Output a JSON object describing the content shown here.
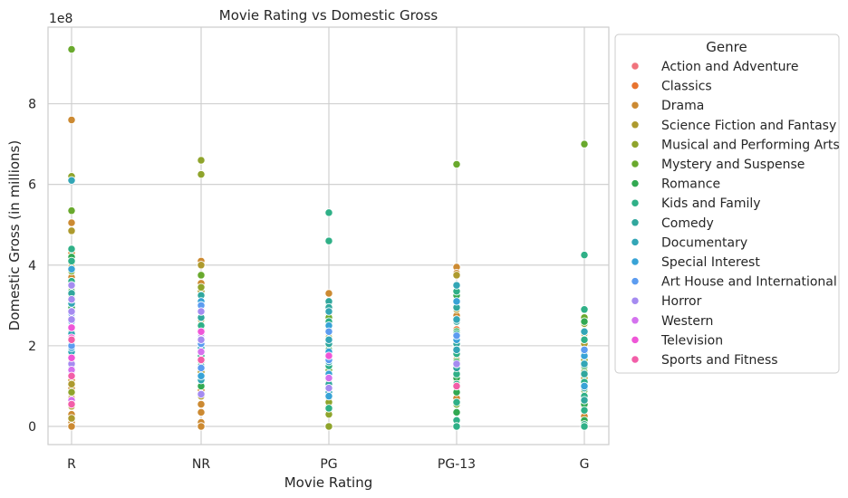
{
  "chart_data": {
    "type": "scatter",
    "title": "Movie Rating vs Domestic Gross",
    "xlabel": "Movie Rating",
    "ylabel": "Domestic Gross (in millions)",
    "y_offset_text": "1e8",
    "y_ticks": [
      0,
      2,
      4,
      6,
      8
    ],
    "ylim": [
      -0.45,
      9.9
    ],
    "categories": [
      "R",
      "NR",
      "PG",
      "PG-13",
      "G"
    ],
    "grid": true,
    "legend": {
      "title": "Genre",
      "placement": "outside-right"
    },
    "series": [
      {
        "name": "Action and Adventure",
        "color": "#f0737d",
        "points": [
          [
            "R",
            0.6
          ],
          [
            "R",
            0.75
          ],
          [
            "R",
            0.8
          ],
          [
            "NR",
            1.3
          ],
          [
            "PG",
            0.65
          ],
          [
            "PG-13",
            1.5
          ],
          [
            "G",
            0.3
          ]
        ]
      },
      {
        "name": "Classics",
        "color": "#e8742f",
        "points": [
          [
            "R",
            1.0
          ],
          [
            "R",
            1.8
          ],
          [
            "NR",
            0.9
          ],
          [
            "PG",
            1.1
          ],
          [
            "PG-13",
            2.4
          ],
          [
            "G",
            0.5
          ]
        ]
      },
      {
        "name": "Drama",
        "color": "#cc8a32",
        "points": [
          [
            "R",
            7.6
          ],
          [
            "R",
            5.05
          ],
          [
            "R",
            4.3
          ],
          [
            "R",
            4.05
          ],
          [
            "R",
            3.7
          ],
          [
            "R",
            3.4
          ],
          [
            "R",
            2.9
          ],
          [
            "R",
            2.6
          ],
          [
            "R",
            2.1
          ],
          [
            "R",
            1.75
          ],
          [
            "R",
            1.5
          ],
          [
            "R",
            1.3
          ],
          [
            "R",
            1.15
          ],
          [
            "R",
            0.95
          ],
          [
            "R",
            0.7
          ],
          [
            "R",
            0.5
          ],
          [
            "R",
            0.3
          ],
          [
            "R",
            0.1
          ],
          [
            "R",
            0.0
          ],
          [
            "NR",
            4.1
          ],
          [
            "NR",
            3.55
          ],
          [
            "NR",
            3.25
          ],
          [
            "NR",
            3.0
          ],
          [
            "NR",
            2.7
          ],
          [
            "NR",
            2.35
          ],
          [
            "NR",
            2.05
          ],
          [
            "NR",
            1.7
          ],
          [
            "NR",
            1.4
          ],
          [
            "NR",
            1.2
          ],
          [
            "NR",
            0.9
          ],
          [
            "NR",
            0.55
          ],
          [
            "NR",
            0.35
          ],
          [
            "NR",
            0.1
          ],
          [
            "NR",
            0.0
          ],
          [
            "PG",
            3.3
          ],
          [
            "PG",
            2.8
          ],
          [
            "PG",
            2.25
          ],
          [
            "PG",
            1.05
          ],
          [
            "PG",
            0.5
          ],
          [
            "PG-13",
            3.95
          ],
          [
            "PG-13",
            3.8
          ],
          [
            "PG-13",
            3.15
          ],
          [
            "PG-13",
            2.75
          ],
          [
            "PG-13",
            2.0
          ],
          [
            "PG-13",
            0.7
          ],
          [
            "G",
            0.25
          ]
        ]
      },
      {
        "name": "Science Fiction and Fantasy",
        "color": "#ad9a2e",
        "points": [
          [
            "R",
            4.85
          ],
          [
            "R",
            3.95
          ],
          [
            "R",
            3.6
          ],
          [
            "R",
            3.2
          ],
          [
            "R",
            2.7
          ],
          [
            "R",
            2.2
          ],
          [
            "R",
            1.6
          ],
          [
            "R",
            1.05
          ],
          [
            "R",
            0.5
          ],
          [
            "R",
            0.2
          ],
          [
            "NR",
            4.0
          ],
          [
            "NR",
            3.35
          ],
          [
            "NR",
            2.95
          ],
          [
            "NR",
            2.65
          ],
          [
            "NR",
            1.95
          ],
          [
            "NR",
            1.35
          ],
          [
            "NR",
            0.75
          ],
          [
            "PG",
            2.1
          ],
          [
            "PG",
            1.8
          ],
          [
            "PG",
            1.55
          ],
          [
            "PG",
            1.25
          ],
          [
            "PG",
            0.95
          ],
          [
            "PG",
            0.7
          ],
          [
            "PG",
            0.35
          ],
          [
            "PG-13",
            3.75
          ],
          [
            "PG-13",
            3.3
          ],
          [
            "PG-13",
            2.9
          ],
          [
            "PG-13",
            1.65
          ],
          [
            "PG-13",
            1.1
          ],
          [
            "G",
            2.3
          ],
          [
            "G",
            2.05
          ],
          [
            "G",
            1.45
          ],
          [
            "G",
            1.2
          ]
        ]
      },
      {
        "name": "Musical and Performing Arts",
        "color": "#8fa42c",
        "points": [
          [
            "R",
            6.2
          ],
          [
            "R",
            2.55
          ],
          [
            "R",
            1.9
          ],
          [
            "R",
            0.85
          ],
          [
            "NR",
            6.6
          ],
          [
            "NR",
            6.25
          ],
          [
            "NR",
            3.45
          ],
          [
            "NR",
            2.2
          ],
          [
            "PG",
            2.2
          ],
          [
            "PG",
            1.35
          ],
          [
            "PG",
            1.05
          ],
          [
            "PG",
            0.6
          ],
          [
            "PG",
            0.3
          ],
          [
            "PG",
            0.0
          ],
          [
            "PG-13",
            2.6
          ],
          [
            "PG-13",
            1.25
          ],
          [
            "G",
            2.55
          ],
          [
            "G",
            1.65
          ],
          [
            "G",
            1.05
          ],
          [
            "G",
            0.75
          ]
        ]
      },
      {
        "name": "Mystery and Suspense",
        "color": "#69a92d",
        "points": [
          [
            "R",
            9.35
          ],
          [
            "R",
            5.35
          ],
          [
            "R",
            3.85
          ],
          [
            "R",
            3.0
          ],
          [
            "NR",
            3.75
          ],
          [
            "NR",
            2.5
          ],
          [
            "NR",
            1.6
          ],
          [
            "PG",
            2.7
          ],
          [
            "PG",
            2.0
          ],
          [
            "PG",
            1.4
          ],
          [
            "PG",
            0.8
          ],
          [
            "PG-13",
            6.5
          ],
          [
            "PG-13",
            3.35
          ],
          [
            "PG-13",
            1.95
          ],
          [
            "PG-13",
            0.55
          ],
          [
            "G",
            7.0
          ],
          [
            "G",
            2.7
          ],
          [
            "G",
            2.15
          ],
          [
            "G",
            1.85
          ],
          [
            "G",
            1.35
          ],
          [
            "G",
            0.9
          ]
        ]
      },
      {
        "name": "Romance",
        "color": "#32a952",
        "points": [
          [
            "R",
            4.2
          ],
          [
            "R",
            3.35
          ],
          [
            "R",
            2.95
          ],
          [
            "R",
            2.35
          ],
          [
            "NR",
            3.0
          ],
          [
            "NR",
            2.4
          ],
          [
            "NR",
            1.85
          ],
          [
            "NR",
            1.0
          ],
          [
            "PG",
            3.05
          ],
          [
            "PG",
            2.95
          ],
          [
            "PG",
            2.9
          ],
          [
            "PG",
            2.45
          ],
          [
            "PG",
            1.9
          ],
          [
            "PG-13",
            3.25
          ],
          [
            "PG-13",
            2.95
          ],
          [
            "PG-13",
            2.35
          ],
          [
            "PG-13",
            1.6
          ],
          [
            "PG-13",
            1.2
          ],
          [
            "PG-13",
            0.85
          ],
          [
            "PG-13",
            0.35
          ],
          [
            "G",
            2.9
          ],
          [
            "G",
            2.6
          ],
          [
            "G",
            1.85
          ],
          [
            "G",
            1.5
          ],
          [
            "G",
            0.55
          ],
          [
            "G",
            0.15
          ]
        ]
      },
      {
        "name": "Kids and Family",
        "color": "#2fb087",
        "points": [
          [
            "R",
            4.4
          ],
          [
            "R",
            4.1
          ],
          [
            "R",
            3.6
          ],
          [
            "R",
            3.15
          ],
          [
            "NR",
            3.05
          ],
          [
            "NR",
            2.5
          ],
          [
            "NR",
            1.75
          ],
          [
            "PG",
            5.3
          ],
          [
            "PG",
            4.6
          ],
          [
            "PG",
            2.6
          ],
          [
            "PG",
            2.4
          ],
          [
            "PG",
            1.5
          ],
          [
            "PG",
            0.45
          ],
          [
            "PG-13",
            3.35
          ],
          [
            "PG-13",
            2.3
          ],
          [
            "PG-13",
            1.8
          ],
          [
            "PG-13",
            1.3
          ],
          [
            "PG-13",
            1.05
          ],
          [
            "PG-13",
            0.6
          ],
          [
            "PG-13",
            0.15
          ],
          [
            "PG-13",
            0.0
          ],
          [
            "G",
            4.25
          ],
          [
            "G",
            2.9
          ],
          [
            "G",
            2.15
          ],
          [
            "G",
            1.1
          ],
          [
            "G",
            0.75
          ],
          [
            "G",
            0.4
          ],
          [
            "G",
            0.05
          ],
          [
            "G",
            0.0
          ]
        ]
      },
      {
        "name": "Comedy",
        "color": "#31a79d",
        "points": [
          [
            "R",
            3.3
          ],
          [
            "R",
            2.5
          ],
          [
            "R",
            2.05
          ],
          [
            "R",
            1.45
          ],
          [
            "NR",
            3.25
          ],
          [
            "NR",
            2.7
          ],
          [
            "NR",
            2.1
          ],
          [
            "NR",
            1.5
          ],
          [
            "PG",
            3.1
          ],
          [
            "PG",
            2.95
          ],
          [
            "PG",
            2.4
          ],
          [
            "PG",
            2.05
          ],
          [
            "PG",
            1.7
          ],
          [
            "PG",
            1.05
          ],
          [
            "PG-13",
            2.95
          ],
          [
            "PG-13",
            2.6
          ],
          [
            "PG-13",
            2.05
          ],
          [
            "PG-13",
            1.45
          ],
          [
            "G",
            1.3
          ],
          [
            "G",
            0.95
          ],
          [
            "G",
            0.65
          ]
        ]
      },
      {
        "name": "Documentary",
        "color": "#33a6b6",
        "points": [
          [
            "R",
            6.1
          ],
          [
            "R",
            3.05
          ],
          [
            "R",
            2.3
          ],
          [
            "R",
            1.85
          ],
          [
            "NR",
            2.85
          ],
          [
            "NR",
            1.95
          ],
          [
            "NR",
            1.15
          ],
          [
            "PG",
            2.85
          ],
          [
            "PG",
            2.15
          ],
          [
            "PG",
            1.6
          ],
          [
            "PG",
            0.85
          ],
          [
            "PG-13",
            3.5
          ],
          [
            "PG-13",
            2.65
          ],
          [
            "PG-13",
            1.9
          ],
          [
            "G",
            2.35
          ],
          [
            "G",
            1.55
          ]
        ]
      },
      {
        "name": "Special Interest",
        "color": "#38a3d6",
        "points": [
          [
            "R",
            3.9
          ],
          [
            "R",
            2.6
          ],
          [
            "R",
            1.95
          ],
          [
            "NR",
            3.1
          ],
          [
            "NR",
            2.25
          ],
          [
            "NR",
            1.25
          ],
          [
            "PG",
            2.5
          ],
          [
            "PG",
            1.85
          ],
          [
            "PG",
            1.3
          ],
          [
            "PG",
            0.75
          ],
          [
            "PG-13",
            3.1
          ],
          [
            "PG-13",
            2.15
          ],
          [
            "G",
            1.75
          ],
          [
            "G",
            1.0
          ]
        ]
      },
      {
        "name": "Art House and International",
        "color": "#5c9cf0",
        "points": [
          [
            "R",
            2.8
          ],
          [
            "R",
            2.0
          ],
          [
            "R",
            1.35
          ],
          [
            "NR",
            3.0
          ],
          [
            "NR",
            2.05
          ],
          [
            "NR",
            1.45
          ],
          [
            "PG",
            2.35
          ],
          [
            "PG",
            1.65
          ],
          [
            "PG-13",
            2.25
          ],
          [
            "G",
            1.9
          ]
        ]
      },
      {
        "name": "Horror",
        "color": "#a58bf0",
        "points": [
          [
            "R",
            3.5
          ],
          [
            "R",
            3.15
          ],
          [
            "R",
            2.85
          ],
          [
            "R",
            2.65
          ],
          [
            "R",
            1.55
          ],
          [
            "NR",
            2.85
          ],
          [
            "NR",
            2.3
          ],
          [
            "NR",
            2.15
          ],
          [
            "NR",
            0.8
          ],
          [
            "PG",
            0.95
          ],
          [
            "PG-13",
            1.55
          ]
        ]
      },
      {
        "name": "Western",
        "color": "#d472ee",
        "points": [
          [
            "R",
            2.45
          ],
          [
            "R",
            1.4
          ],
          [
            "R",
            0.65
          ],
          [
            "NR",
            1.85
          ],
          [
            "PG",
            1.2
          ]
        ]
      },
      {
        "name": "Television",
        "color": "#ef56d7",
        "points": [
          [
            "R",
            2.45
          ],
          [
            "R",
            2.2
          ],
          [
            "R",
            1.7
          ],
          [
            "NR",
            2.35
          ],
          [
            "PG",
            1.75
          ]
        ]
      },
      {
        "name": "Sports and Fitness",
        "color": "#f25ea8",
        "points": [
          [
            "R",
            2.15
          ],
          [
            "R",
            1.25
          ],
          [
            "R",
            0.55
          ],
          [
            "NR",
            1.65
          ],
          [
            "PG-13",
            1.0
          ]
        ]
      }
    ]
  }
}
